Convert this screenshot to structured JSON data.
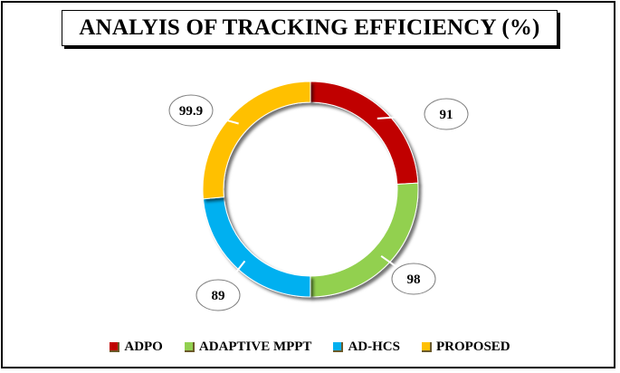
{
  "chart_data": {
    "type": "pie",
    "variant": "doughnut",
    "title": "ANALYIS OF TRACKING EFFICIENCY (%)",
    "categories": [
      "ADPO",
      "ADAPTIVE MPPT",
      "AD-HCS",
      "PROPOSED"
    ],
    "values": [
      91,
      98,
      89,
      99.9
    ],
    "data_labels": [
      "91",
      "98",
      "89",
      "99.9"
    ],
    "colors": [
      "#c00000",
      "#92d050",
      "#00b0f0",
      "#ffc000"
    ],
    "legend_position": "bottom"
  }
}
